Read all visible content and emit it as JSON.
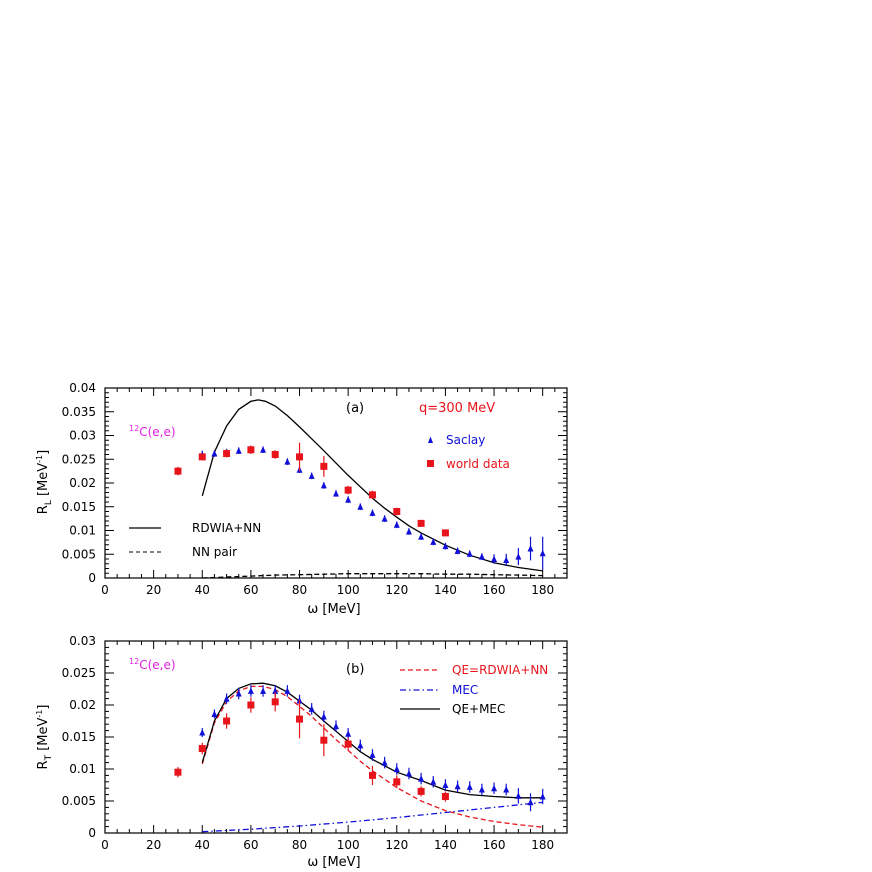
{
  "chart_data": [
    {
      "type": "line",
      "panel_label": "(a)",
      "annotation_q": "q=300 MeV",
      "annotation_target": "C(e,e)",
      "annotation_target_mass": "12",
      "xlabel": "ω [MeV]",
      "ylabel_main": "R",
      "ylabel_sub": "L",
      "ylabel_unit": " [MeV",
      "ylabel_exp": "-1",
      "ylabel_close": "]",
      "xlim": [
        0,
        190
      ],
      "ylim": [
        0,
        0.04
      ],
      "xticks": [
        0,
        20,
        40,
        60,
        80,
        100,
        120,
        140,
        160,
        180
      ],
      "yticks": [
        0,
        0.005,
        0.01,
        0.015,
        0.02,
        0.025,
        0.03,
        0.035,
        0.04
      ],
      "ytick_labels": [
        "0",
        "0.005",
        "0.01",
        "0.015",
        "0.02",
        "0.025",
        "0.03",
        "0.035",
        "0.04"
      ],
      "series": [
        {
          "name": "RDWIA+NN",
          "kind": "line",
          "color": "#000000",
          "dash": "solid",
          "x": [
            40,
            45,
            50,
            55,
            60,
            63,
            66,
            70,
            75,
            80,
            85,
            90,
            95,
            100,
            105,
            110,
            115,
            120,
            125,
            130,
            140,
            150,
            160,
            170,
            180
          ],
          "y": [
            0.0173,
            0.0265,
            0.032,
            0.0355,
            0.0372,
            0.0375,
            0.0372,
            0.0362,
            0.0342,
            0.0318,
            0.0293,
            0.0268,
            0.0242,
            0.0216,
            0.0192,
            0.0168,
            0.0147,
            0.0128,
            0.011,
            0.0095,
            0.0069,
            0.0048,
            0.0032,
            0.0022,
            0.0015
          ]
        },
        {
          "name": "NN pair",
          "kind": "line",
          "color": "#000000",
          "dash": "dashed",
          "x": [
            40,
            50,
            60,
            70,
            80,
            90,
            100,
            110,
            120,
            130,
            140,
            150,
            160,
            170,
            180
          ],
          "y": [
            0.0,
            0.0002,
            0.0004,
            0.0006,
            0.0007,
            0.0008,
            0.0009,
            0.0009,
            0.0009,
            0.0009,
            0.0008,
            0.0008,
            0.0007,
            0.0006,
            0.0005
          ]
        },
        {
          "name": "Saclay",
          "kind": "points",
          "marker": "triangle",
          "color": "#1010d8",
          "x": [
            40,
            45,
            50,
            55,
            60,
            65,
            70,
            75,
            80,
            85,
            90,
            95,
            100,
            105,
            110,
            115,
            120,
            125,
            130,
            135,
            140,
            145,
            150,
            155,
            160,
            165,
            170,
            175,
            180
          ],
          "y": [
            0.026,
            0.0262,
            0.0265,
            0.0268,
            0.027,
            0.027,
            0.026,
            0.0245,
            0.0228,
            0.0215,
            0.0195,
            0.0178,
            0.0165,
            0.015,
            0.0137,
            0.0125,
            0.0112,
            0.0098,
            0.0087,
            0.0076,
            0.0067,
            0.0057,
            0.0051,
            0.0045,
            0.004,
            0.0038,
            0.0045,
            0.0062,
            0.0052
          ],
          "err": [
            0.0008,
            0.0007,
            0.0007,
            0.0007,
            0.0007,
            0.0007,
            0.0007,
            0.0007,
            0.0007,
            0.0007,
            0.0007,
            0.0007,
            0.0007,
            0.0007,
            0.0007,
            0.0007,
            0.0007,
            0.0007,
            0.0007,
            0.0007,
            0.0007,
            0.0007,
            0.0007,
            0.0007,
            0.001,
            0.0013,
            0.0018,
            0.0025,
            0.0035
          ]
        },
        {
          "name": "world data",
          "kind": "points",
          "marker": "square",
          "color": "#e8141c",
          "x": [
            30,
            40,
            50,
            60,
            70,
            80,
            90,
            100,
            110,
            120,
            130,
            140
          ],
          "y": [
            0.0225,
            0.0255,
            0.0262,
            0.027,
            0.026,
            0.0255,
            0.0235,
            0.0185,
            0.0175,
            0.014,
            0.0115,
            0.0095
          ],
          "err": [
            0.0009,
            0.0007,
            0.0008,
            0.0009,
            0.0009,
            0.003,
            0.0022,
            0.0009,
            0.0009,
            0.0008,
            0.0007,
            0.0007
          ]
        }
      ]
    },
    {
      "type": "line",
      "panel_label": "(b)",
      "annotation_target": "C(e,e)",
      "annotation_target_mass": "12",
      "xlabel": "ω [MeV]",
      "ylabel_main": "R",
      "ylabel_sub": "T",
      "ylabel_unit": " [MeV",
      "ylabel_exp": "-1",
      "ylabel_close": "]",
      "xlim": [
        0,
        190
      ],
      "ylim": [
        0,
        0.03
      ],
      "xticks": [
        0,
        20,
        40,
        60,
        80,
        100,
        120,
        140,
        160,
        180
      ],
      "yticks": [
        0,
        0.005,
        0.01,
        0.015,
        0.02,
        0.025,
        0.03
      ],
      "ytick_labels": [
        "0",
        "0.005",
        "0.01",
        "0.015",
        "0.02",
        "0.025",
        "0.03"
      ],
      "series": [
        {
          "name": "QE=RDWIA+NN",
          "kind": "line",
          "color": "#e8141c",
          "dash": "dashed",
          "x": [
            40,
            45,
            50,
            55,
            60,
            65,
            70,
            75,
            80,
            85,
            90,
            95,
            100,
            105,
            110,
            120,
            130,
            140,
            150,
            160,
            170,
            180
          ],
          "y": [
            0.0108,
            0.0172,
            0.0205,
            0.0222,
            0.0229,
            0.0229,
            0.0224,
            0.0213,
            0.0198,
            0.0182,
            0.0164,
            0.0146,
            0.0129,
            0.0112,
            0.0097,
            0.0071,
            0.005,
            0.0035,
            0.0025,
            0.0018,
            0.0013,
            0.0009
          ]
        },
        {
          "name": "MEC",
          "kind": "line",
          "color": "#1010d8",
          "dash": "dashdot",
          "x": [
            40,
            60,
            80,
            100,
            120,
            140,
            160,
            180
          ],
          "y": [
            0.0002,
            0.0006,
            0.0011,
            0.0017,
            0.0024,
            0.0032,
            0.004,
            0.0048
          ]
        },
        {
          "name": "QE+MEC",
          "kind": "line",
          "color": "#000000",
          "dash": "solid",
          "x": [
            40,
            45,
            50,
            55,
            60,
            65,
            70,
            75,
            80,
            85,
            90,
            95,
            100,
            105,
            110,
            120,
            130,
            140,
            150,
            160,
            170,
            180
          ],
          "y": [
            0.011,
            0.0175,
            0.021,
            0.0226,
            0.0233,
            0.0234,
            0.023,
            0.022,
            0.0206,
            0.0192,
            0.0175,
            0.0159,
            0.0143,
            0.0127,
            0.0115,
            0.0095,
            0.0082,
            0.0067,
            0.006,
            0.0057,
            0.0055,
            0.0055
          ]
        },
        {
          "name": "Saclay",
          "kind": "points",
          "marker": "triangle",
          "color": "#1010d8",
          "x": [
            40,
            45,
            50,
            55,
            60,
            65,
            70,
            75,
            80,
            85,
            90,
            95,
            100,
            105,
            110,
            115,
            120,
            125,
            130,
            135,
            140,
            145,
            150,
            155,
            160,
            165,
            170,
            175,
            180
          ],
          "y": [
            0.0157,
            0.0186,
            0.021,
            0.0218,
            0.0222,
            0.0222,
            0.0222,
            0.0222,
            0.0207,
            0.0194,
            0.0182,
            0.0167,
            0.0155,
            0.0137,
            0.0122,
            0.011,
            0.01,
            0.0093,
            0.0085,
            0.008,
            0.0075,
            0.0073,
            0.0072,
            0.0068,
            0.007,
            0.0068,
            0.0058,
            0.0048,
            0.0057
          ],
          "err": [
            0.0007,
            0.0007,
            0.0008,
            0.0009,
            0.0009,
            0.0009,
            0.0009,
            0.0009,
            0.0009,
            0.0009,
            0.0009,
            0.0009,
            0.0009,
            0.0009,
            0.0009,
            0.0009,
            0.0009,
            0.0009,
            0.0009,
            0.0009,
            0.0009,
            0.0009,
            0.0009,
            0.0009,
            0.0009,
            0.0009,
            0.0012,
            0.0014,
            0.0012
          ]
        },
        {
          "name": "world data",
          "kind": "points",
          "marker": "square",
          "color": "#e8141c",
          "x": [
            30,
            40,
            50,
            60,
            70,
            80,
            90,
            100,
            110,
            120,
            130,
            140
          ],
          "y": [
            0.0095,
            0.0132,
            0.0175,
            0.02,
            0.0205,
            0.0178,
            0.0145,
            0.0139,
            0.009,
            0.008,
            0.0065,
            0.0057
          ],
          "err": [
            0.0008,
            0.0009,
            0.0012,
            0.0012,
            0.0015,
            0.003,
            0.0025,
            0.001,
            0.0015,
            0.001,
            0.0008,
            0.0008
          ]
        }
      ]
    }
  ],
  "legend_a": {
    "saclay_label": "Saclay",
    "world_label": "world data",
    "rdwia_label": "RDWIA+NN",
    "nnpair_label": "NN pair"
  },
  "legend_b": {
    "qe_label": "QE=RDWIA+NN",
    "mec_label": "MEC",
    "qemec_label": "QE+MEC"
  },
  "colors": {
    "saclay": "#1010d8",
    "world": "#e8141c",
    "annotation_target": "#e020e0",
    "annotation_q": "#e8141c"
  }
}
